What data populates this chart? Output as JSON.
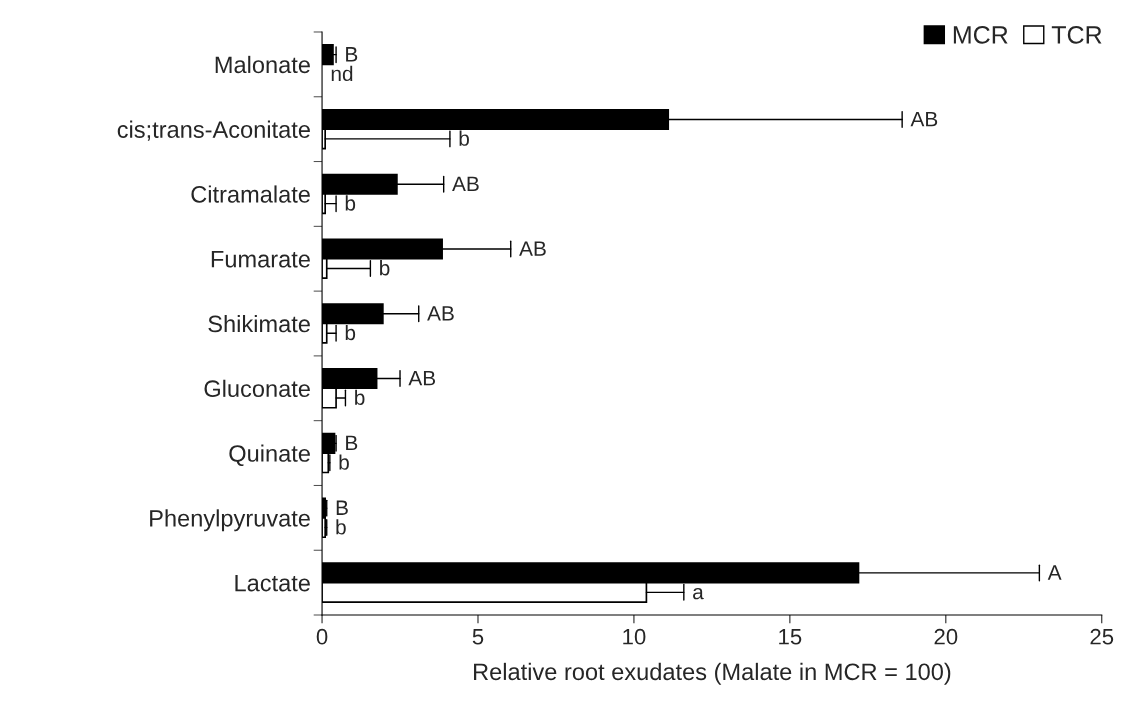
{
  "chart_data": {
    "type": "bar",
    "orientation": "horizontal",
    "xlabel": "Relative root exudates (Malate in MCR = 100)",
    "categories": [
      "Malonate",
      "cis;trans-Aconitate",
      "Citramalate",
      "Fumarate",
      "Shikimate",
      "Gluconate",
      "Quinate",
      "Phenylpyruvate",
      "Lactate"
    ],
    "series": [
      {
        "name": "MCR",
        "color": "#000000",
        "values": [
          0.35,
          11.1,
          2.4,
          3.85,
          1.95,
          1.75,
          0.4,
          0.1,
          17.2
        ],
        "errors": [
          [
            0.35,
            0.45
          ],
          [
            11.1,
            18.6
          ],
          [
            2.4,
            3.9
          ],
          [
            3.85,
            6.05
          ],
          [
            1.95,
            3.1
          ],
          [
            1.75,
            2.5
          ],
          [
            0.4,
            0.45
          ],
          [
            0.1,
            0.15
          ],
          [
            17.2,
            23.0
          ]
        ]
      },
      {
        "name": "TCR",
        "color": "#ffffff",
        "values": [
          null,
          0.1,
          0.1,
          0.15,
          0.15,
          0.45,
          0.2,
          0.1,
          10.4
        ],
        "errors": [
          null,
          [
            0.1,
            4.1
          ],
          [
            0.1,
            0.45
          ],
          [
            0.15,
            1.55
          ],
          [
            0.15,
            0.45
          ],
          [
            0.45,
            0.75
          ],
          [
            0.2,
            0.25
          ],
          [
            0.1,
            0.15
          ],
          [
            10.4,
            11.6
          ]
        ]
      }
    ],
    "annotations": [
      {
        "text": "B",
        "x": 0.45,
        "y": "Malonate"
      },
      {
        "text": "nd",
        "x": 0,
        "y": "Malonate"
      },
      {
        "text": "AB",
        "x": 18.6,
        "y": "cis;trans-Aconitate"
      },
      {
        "text": "b",
        "x": 4.1,
        "y": "cis;trans-Aconitate"
      },
      {
        "text": "AB",
        "x": 3.9,
        "y": "Citramalate"
      },
      {
        "text": "b",
        "x": 0.45,
        "y": "Citramalate"
      },
      {
        "text": "AB",
        "x": 6.05,
        "y": "Fumarate"
      },
      {
        "text": "b",
        "x": 1.55,
        "y": "Fumarate"
      },
      {
        "text": "AB",
        "x": 3.1,
        "y": "Shikimate"
      },
      {
        "text": "b",
        "x": 0.45,
        "y": "Shikimate"
      },
      {
        "text": "AB",
        "x": 2.5,
        "y": "Gluconate"
      },
      {
        "text": "b",
        "x": 0.75,
        "y": "Gluconate"
      },
      {
        "text": "B",
        "x": 0.45,
        "y": "Quinate"
      },
      {
        "text": "b",
        "x": 0.25,
        "y": "Quinate"
      },
      {
        "text": "B",
        "x": 0.15,
        "y": "Phenylpyruvate"
      },
      {
        "text": "b",
        "x": 0.15,
        "y": "Phenylpyruvate"
      },
      {
        "text": "A",
        "x": 23.0,
        "y": "Lactate"
      },
      {
        "text": "a",
        "x": 11.6,
        "y": "Lactate"
      }
    ],
    "xlim": [
      0,
      25
    ],
    "xticks": [
      0,
      5,
      10,
      15,
      20,
      25
    ],
    "legend": "top right",
    "grid": false
  }
}
